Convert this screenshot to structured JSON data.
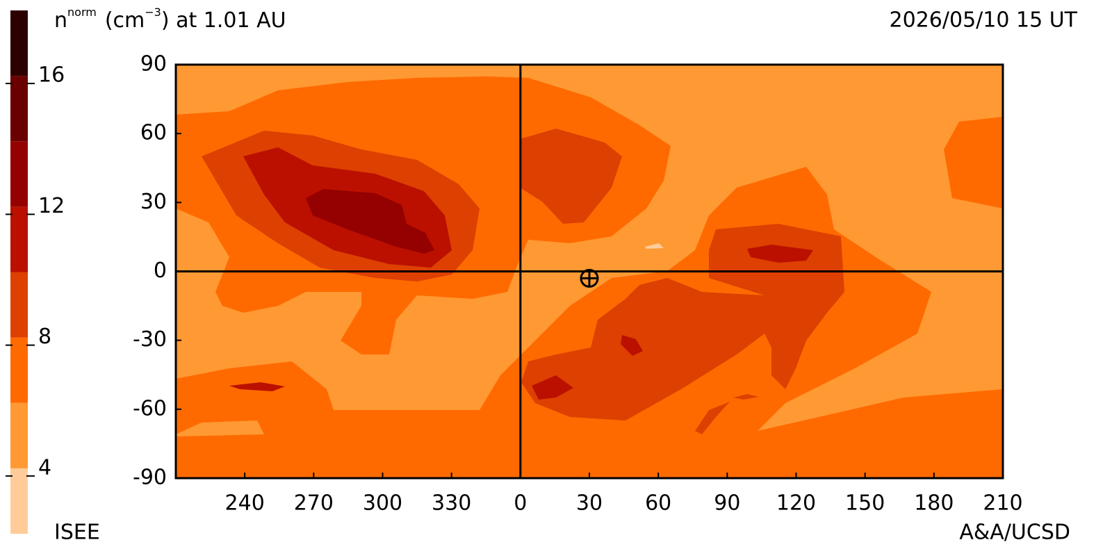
{
  "chart_data": {
    "type": "contour-map",
    "title": {
      "base": "n",
      "sup": "norm",
      "unit": "(cm",
      "unit_sup": "−3",
      "rest": ") at 1.01 AU"
    },
    "timestamp": "2026/05/10 15 UT",
    "credit_left": "ISEE",
    "credit_right": "A&A/UCSD",
    "xlim": [
      -150,
      210
    ],
    "ylim": [
      -90,
      90
    ],
    "xticks": [
      {
        "value": -120,
        "label": "240"
      },
      {
        "value": -90,
        "label": "270"
      },
      {
        "value": -60,
        "label": "300"
      },
      {
        "value": -30,
        "label": "330"
      },
      0,
      30,
      60,
      90,
      120,
      150,
      180,
      210
    ],
    "yticks": [
      90,
      60,
      30,
      0,
      -30,
      -60,
      -90
    ],
    "colorbar": {
      "bounds": [
        2,
        4,
        6,
        8,
        10,
        12,
        14,
        16,
        18
      ],
      "ticks": [
        4,
        8,
        12,
        16
      ],
      "colors": [
        "#ffcc99",
        "#ff9933",
        "#ff6a00",
        "#dd4000",
        "#bb1000",
        "#950000",
        "#6a0000",
        "#2d0000"
      ]
    },
    "earth": {
      "lon": 30,
      "lat": -3
    }
  }
}
